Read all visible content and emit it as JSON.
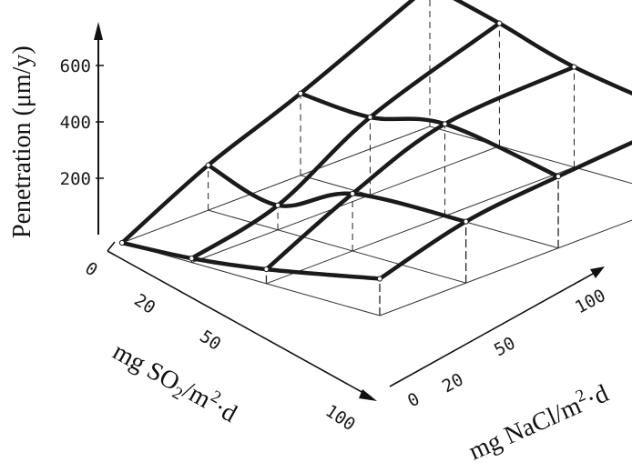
{
  "chart_data": {
    "type": "surface3d",
    "title": "",
    "zlabel": "Penetration (μm/y)",
    "x_axis_label": "mg SO2/m2·d",
    "x_axis_label_parts": [
      "mg SO",
      "2",
      "/m",
      "2",
      "·d"
    ],
    "y_axis_label": "mg NaCl/m2·d",
    "y_axis_label_parts": [
      "mg NaCl/m",
      "2",
      "·d"
    ],
    "x_ticks": [
      "0",
      "20",
      "50",
      "100"
    ],
    "y_ticks": [
      "0",
      "20",
      "50",
      "100"
    ],
    "z_ticks": [
      "200",
      "400",
      "600"
    ],
    "x_values": [
      0,
      20,
      50,
      100
    ],
    "y_values": [
      0,
      20,
      50,
      100
    ],
    "z_values": [
      [
        0,
        220,
        400,
        690
      ],
      [
        20,
        120,
        380,
        600
      ],
      [
        70,
        280,
        450,
        490
      ],
      [
        180,
        300,
        350,
        400
      ]
    ],
    "zlim": [
      0,
      700
    ]
  }
}
